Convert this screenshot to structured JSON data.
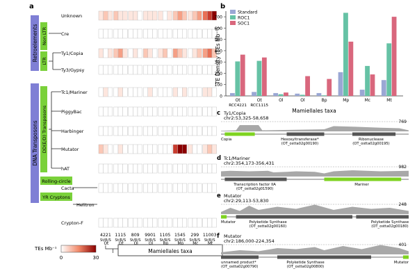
{
  "panel_a": {
    "letter": "a",
    "te_types": [
      "Unknown",
      "Cre",
      "Ty1/Copia",
      "Ty3/Gypsy",
      "Tc1/Mariner",
      "PiggyBac",
      "Harbinger",
      "Mutator",
      "hAT",
      "Cacta",
      "Helitron",
      "Crypton-F"
    ],
    "group_labels": {
      "retro": "Retroelements",
      "nonltr": "Non LTR",
      "ltr": "LTR",
      "dna": "DNA Transposons",
      "ddd": "DD(E/D) Transposons",
      "rolling": "Rolling-circle",
      "yr": "YR Cryptons"
    },
    "columns": [
      {
        "number": "4221",
        "label": "Ot RCC4221"
      },
      {
        "number": "1115",
        "label": "Ot RCC1115"
      },
      {
        "number": "809",
        "label": "Ol"
      },
      {
        "number": "9901",
        "label": "Ol"
      },
      {
        "number": "1105",
        "label": "Bp"
      },
      {
        "number": "1545",
        "label": "Mp"
      },
      {
        "number": "299",
        "label": "Mc"
      },
      {
        "number": "11003",
        "label": "Mt"
      }
    ],
    "col_sublabel": "St/R/S",
    "tree_tips": [
      "Ot",
      "Ot",
      "Ol",
      "Ol",
      "Bp",
      "Mp",
      "Mc",
      "Mt"
    ],
    "taxa_box": "Mamiellales taxa",
    "colorbar": {
      "title": "TEs Mb⁻¹",
      "min": "0",
      "max": "30",
      "low_color": "#ffffff",
      "high_color": "#8b0000"
    }
  },
  "panel_b": {
    "letter": "b",
    "chart_data": {
      "type": "bar",
      "ylabel": "TE Density (TEs Mb⁻¹)",
      "xlabel": "Mamiellales taxa",
      "ylim": [
        0,
        750
      ],
      "yticks": [
        "0",
        "100",
        "200",
        "300",
        "400",
        "500",
        "600",
        "700"
      ],
      "categories": [
        "Ot RCC4221",
        "Ot RCC1115",
        "Ol",
        "Ol",
        "Bp",
        "Mp",
        "Mc",
        "Mt"
      ],
      "series": [
        {
          "name": "Standard",
          "color": "#9aa7d4",
          "values": [
            25,
            35,
            25,
            20,
            25,
            210,
            55,
            140
          ]
        },
        {
          "name": "ROC1",
          "color": "#66c2a5",
          "values": [
            305,
            310,
            15,
            10,
            5,
            735,
            265,
            465
          ]
        },
        {
          "name": "SOC1",
          "color": "#d9677d",
          "values": [
            365,
            340,
            30,
            175,
            150,
            480,
            190,
            700
          ]
        }
      ],
      "legend": "top-left"
    }
  },
  "panel_c": {
    "letter": "c",
    "title": "Ty1/Copia",
    "coords": "chr2:53,325-58,658",
    "max": "769",
    "genes": [
      {
        "name": "Copia"
      },
      {
        "name": "Hexosyltransferase*",
        "id": "(OT_ostta02g00190)"
      },
      {
        "name": "Ribonuclease",
        "id": "(OT_ostta02g00195)"
      }
    ]
  },
  "panel_d": {
    "letter": "d",
    "title": "Tc1/Mariner",
    "coords": "chr2:354,173-356,431",
    "max": "982",
    "genes": [
      {
        "name": "Transcription factor IIA",
        "id": "(OT_ostta02g01590)"
      },
      {
        "name": "Mariner"
      }
    ]
  },
  "panel_e": {
    "letter": "e",
    "title": "Mutator",
    "coords": "chr2:29,113-53,830",
    "max": "248",
    "genes": [
      {
        "name": "Mutator"
      },
      {
        "name": "Polyketide Synthase",
        "id": "(OT_ostta02g00160)"
      },
      {
        "name": "Polyketide Synthase",
        "id": "(OT_ostta02g00180)"
      }
    ]
  },
  "panel_f": {
    "letter": "f",
    "title": "Mutator",
    "coords": "chr2:186,000-224,354",
    "max": "401",
    "genes": [
      {
        "name": "unnamed product*",
        "id": "(OT_ostta02g00790)"
      },
      {
        "name": "Polyketide Synthase",
        "id": "(OT_ostta02g00800)"
      },
      {
        "name": "Mutator"
      }
    ]
  }
}
